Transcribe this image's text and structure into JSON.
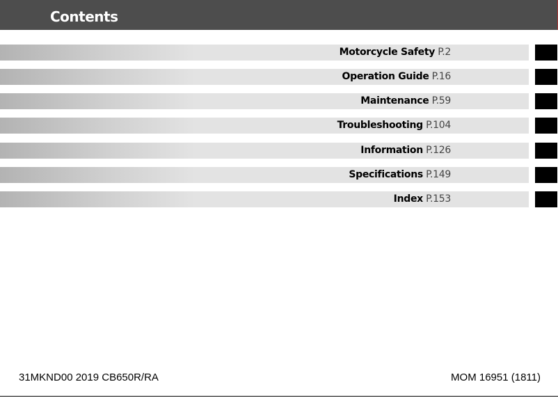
{
  "header": {
    "title": "Contents"
  },
  "sections": [
    {
      "title": "Motorcycle Safety",
      "page": "P.2"
    },
    {
      "title": "Operation Guide",
      "page": "P.16"
    },
    {
      "title": "Maintenance",
      "page": "P.59"
    },
    {
      "title": "Troubleshooting",
      "page": "P.104"
    },
    {
      "title": "Information",
      "page": "P.126"
    },
    {
      "title": "Specifications",
      "page": "P.149"
    },
    {
      "title": "Index",
      "page": "P.153"
    }
  ],
  "footer": {
    "left": "31MKND00 2019 CB650R/RA",
    "right": "MOM 16951 (1811)"
  },
  "colors": {
    "header": "#4d4d4d",
    "tab": "#000000",
    "bar": "#e3e3e3"
  }
}
